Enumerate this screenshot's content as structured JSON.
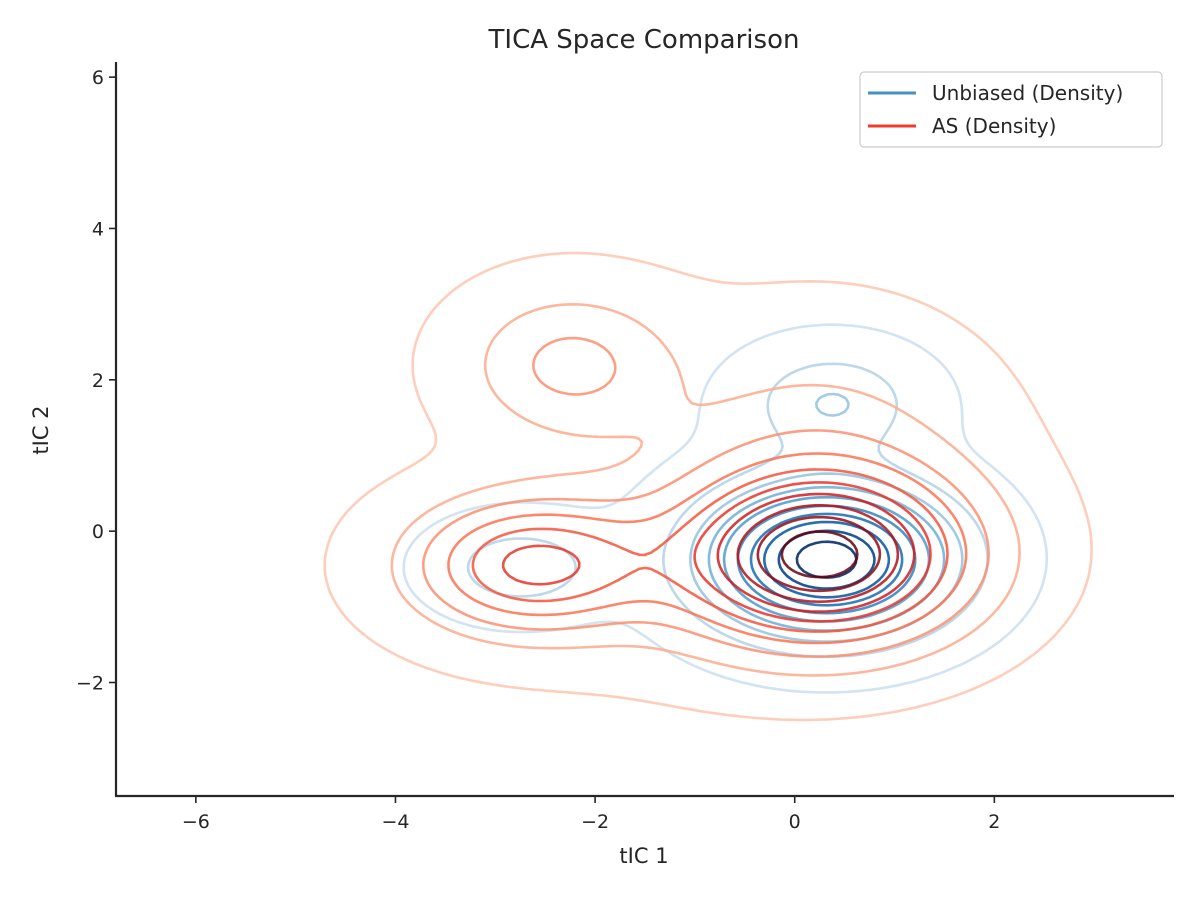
{
  "chart_data": {
    "type": "contour",
    "title": "TICA Space Comparison",
    "xlabel": "tIC 1",
    "ylabel": "tIC 2",
    "xlim": [
      -6.8,
      3.8
    ],
    "ylim": [
      -3.5,
      6.2
    ],
    "xticks": [
      -6,
      -4,
      -2,
      0,
      2
    ],
    "yticks": [
      -2,
      0,
      2,
      4,
      6
    ],
    "xtick_labels": [
      "−6",
      "−4",
      "−2",
      "0",
      "2"
    ],
    "ytick_labels": [
      "−2",
      "0",
      "2",
      "4",
      "6"
    ],
    "grid": false,
    "legend_position": "top-right",
    "levels": 10,
    "series": [
      {
        "name": "Unbiased (Density)",
        "colormap": "Blues",
        "legend_color": "#4292c6",
        "components": [
          {
            "mx": 0.32,
            "my": -0.38,
            "sx": 0.78,
            "sy": 0.62,
            "rho": 0.0,
            "w": 0.8
          },
          {
            "mx": 0.38,
            "my": 1.7,
            "sx": 0.55,
            "sy": 0.45,
            "rho": 0.0,
            "w": 0.09
          },
          {
            "mx": -2.75,
            "my": -0.48,
            "sx": 0.55,
            "sy": 0.4,
            "rho": 0.0,
            "w": 0.07
          },
          {
            "mx": 0.2,
            "my": 0.6,
            "sx": 1.2,
            "sy": 1.3,
            "rho": 0.0,
            "w": 0.04
          }
        ]
      },
      {
        "name": "AS (Density)",
        "colormap": "Reds",
        "legend_color": "#ef3b2c",
        "components": [
          {
            "mx": 0.3,
            "my": -0.35,
            "sx": 0.95,
            "sy": 0.75,
            "rho": 0.0,
            "w": 0.5
          },
          {
            "mx": -2.65,
            "my": -0.45,
            "sx": 0.8,
            "sy": 0.6,
            "rho": 0.0,
            "w": 0.2
          },
          {
            "mx": -2.25,
            "my": 2.2,
            "sx": 0.7,
            "sy": 0.65,
            "rho": 0.0,
            "w": 0.09
          },
          {
            "mx": 0.2,
            "my": 1.1,
            "sx": 1.1,
            "sy": 1.1,
            "rho": 0.0,
            "w": 0.14
          },
          {
            "mx": -1.0,
            "my": -0.5,
            "sx": 1.2,
            "sy": 0.9,
            "rho": 0.0,
            "w": 0.07
          }
        ]
      }
    ],
    "colors": {
      "axis": "#262626",
      "background": "#ffffff"
    }
  }
}
